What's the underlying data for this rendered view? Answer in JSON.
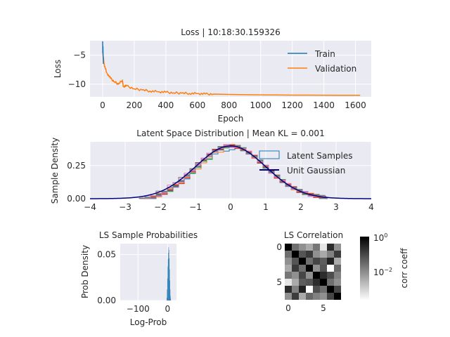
{
  "chart_data": [
    {
      "type": "line",
      "title": "Loss | 10:18:30.159326",
      "xlabel": "Epoch",
      "ylabel": "Loss",
      "xlim": [
        -80,
        1700
      ],
      "ylim": [
        -12.2,
        -2.5
      ],
      "xticks": [
        0,
        200,
        400,
        600,
        800,
        1000,
        1200,
        1400,
        1600
      ],
      "yticks": [
        -5,
        -10
      ],
      "grid": true,
      "legend": "top-right",
      "series": [
        {
          "name": "Train",
          "color": "#1f77b4",
          "points": [
            [
              0,
              -2.6
            ],
            [
              1,
              -4.6
            ],
            [
              2,
              -3.5
            ],
            [
              3,
              -5.2
            ],
            [
              4,
              -6.0
            ],
            [
              5,
              -6.5
            ]
          ]
        },
        {
          "name": "Validation",
          "color": "#ff7f0e",
          "points": [
            [
              0,
              -4.4
            ],
            [
              10,
              -6.6
            ],
            [
              25,
              -8.0
            ],
            [
              50,
              -9.0
            ],
            [
              75,
              -9.6
            ],
            [
              100,
              -10.0
            ],
            [
              125,
              -9.3
            ],
            [
              130,
              -10.4
            ],
            [
              150,
              -10.3
            ],
            [
              200,
              -10.8
            ],
            [
              250,
              -11.0
            ],
            [
              300,
              -11.2
            ],
            [
              350,
              -11.3
            ],
            [
              400,
              -11.4
            ],
            [
              450,
              -11.5
            ],
            [
              500,
              -11.55
            ],
            [
              550,
              -11.6
            ],
            [
              600,
              -11.62
            ],
            [
              650,
              -11.7
            ],
            [
              700,
              -11.72
            ],
            [
              800,
              -11.78
            ],
            [
              900,
              -11.82
            ],
            [
              1000,
              -11.85
            ],
            [
              1100,
              -11.87
            ],
            [
              1200,
              -11.89
            ],
            [
              1300,
              -11.9
            ],
            [
              1400,
              -11.91
            ],
            [
              1500,
              -11.92
            ],
            [
              1630,
              -11.93
            ]
          ]
        }
      ]
    },
    {
      "type": "line",
      "title": "Latent Space Distribution | Mean KL = 0.001",
      "xlabel": "",
      "ylabel": "Sample Density",
      "xlim": [
        -4,
        4
      ],
      "ylim": [
        0,
        0.43
      ],
      "xticks": [
        -4,
        -3,
        -2,
        -1,
        0,
        1,
        2,
        3,
        4
      ],
      "yticks": [
        0.0,
        0.25
      ],
      "ytick_labels": [
        "0.00",
        "0.25"
      ],
      "grid": true,
      "legend": "top-right",
      "series": [
        {
          "name": "Latent Samples",
          "kind": "step-histograms",
          "count": 8,
          "colors": [
            "#1f77b4",
            "#ff7f0e",
            "#2ca02c",
            "#d62728",
            "#9467bd",
            "#8c564b",
            "#e377c2",
            "#7f7f7f"
          ]
        },
        {
          "name": "Unit Gaussian",
          "kind": "pdf",
          "mean": 0,
          "std": 1,
          "color": "#000080"
        }
      ]
    },
    {
      "type": "bar",
      "title": "LS Sample Probabilities",
      "xlabel": "Log-Prob",
      "ylabel": "Prob Density",
      "xlim": [
        -160,
        30
      ],
      "ylim": [
        0,
        0.062
      ],
      "xticks": [
        -100,
        0
      ],
      "xtick_labels": [
        "−100",
        "0"
      ],
      "yticks": [
        0.0,
        0.05
      ],
      "ytick_labels": [
        "0.00",
        "0.05"
      ],
      "color": "#1f77b4",
      "bins": [
        [
          0,
          0.003
        ],
        [
          1,
          0.012
        ],
        [
          2,
          0.024
        ],
        [
          3,
          0.037
        ],
        [
          4,
          0.045
        ],
        [
          5,
          0.052
        ],
        [
          6,
          0.058
        ],
        [
          7,
          0.055
        ],
        [
          8,
          0.046
        ],
        [
          9,
          0.034
        ],
        [
          10,
          0.022
        ],
        [
          11,
          0.012
        ],
        [
          12,
          0.005
        ],
        [
          13,
          0.002
        ]
      ]
    },
    {
      "type": "heatmap",
      "title": "LS Correlation",
      "xticks": [
        0,
        5
      ],
      "yticks": [
        0,
        5
      ],
      "colorbar_label": "corr coeff",
      "colorbar_ticks": [
        "10^0",
        "10^-2"
      ],
      "matrix": [
        [
          1.0,
          0.05,
          0.02,
          0.01,
          0.04,
          0.002,
          0.3,
          0.02
        ],
        [
          0.05,
          1.0,
          0.1,
          0.2,
          0.02,
          0.01,
          0.03,
          0.2
        ],
        [
          0.02,
          0.1,
          1.0,
          0.05,
          0.15,
          0.08,
          0.4,
          0.01
        ],
        [
          0.01,
          0.2,
          0.05,
          1.0,
          0.02,
          0.1,
          0.001,
          0.06
        ],
        [
          0.04,
          0.02,
          0.15,
          0.02,
          1.0,
          0.3,
          0.12,
          0.03
        ],
        [
          0.002,
          0.01,
          0.08,
          0.1,
          0.3,
          1.0,
          0.05,
          0.02
        ],
        [
          0.3,
          0.03,
          0.4,
          0.001,
          0.12,
          0.05,
          1.0,
          0.15
        ],
        [
          0.02,
          0.2,
          0.01,
          0.06,
          0.03,
          0.02,
          0.15,
          1.0
        ]
      ]
    }
  ]
}
